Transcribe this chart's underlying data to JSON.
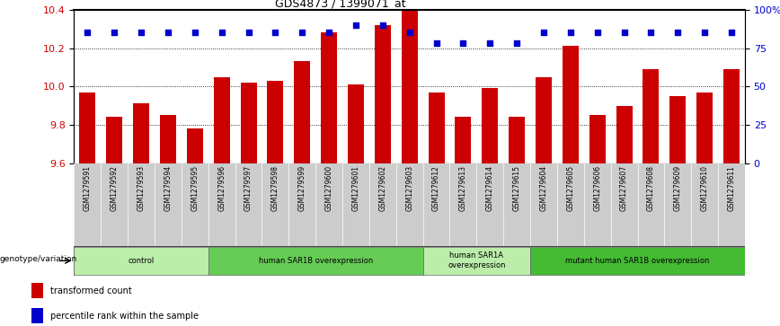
{
  "title": "GDS4873 / 1399071_at",
  "samples": [
    "GSM1279591",
    "GSM1279592",
    "GSM1279593",
    "GSM1279594",
    "GSM1279595",
    "GSM1279596",
    "GSM1279597",
    "GSM1279598",
    "GSM1279599",
    "GSM1279600",
    "GSM1279601",
    "GSM1279602",
    "GSM1279603",
    "GSM1279612",
    "GSM1279613",
    "GSM1279614",
    "GSM1279615",
    "GSM1279604",
    "GSM1279605",
    "GSM1279606",
    "GSM1279607",
    "GSM1279608",
    "GSM1279609",
    "GSM1279610",
    "GSM1279611"
  ],
  "bar_values": [
    9.97,
    9.84,
    9.91,
    9.85,
    9.78,
    10.05,
    10.02,
    10.03,
    10.13,
    10.28,
    10.01,
    10.32,
    10.4,
    9.97,
    9.84,
    9.99,
    9.84,
    10.05,
    10.21,
    9.85,
    9.9,
    10.09,
    9.95,
    9.97,
    10.09
  ],
  "percentile_values": [
    85,
    85,
    85,
    85,
    85,
    85,
    85,
    85,
    85,
    85,
    90,
    90,
    85,
    78,
    78,
    78,
    78,
    85,
    85,
    85,
    85,
    85,
    85,
    85,
    85
  ],
  "ylim_left": [
    9.6,
    10.4
  ],
  "ylim_right": [
    0,
    100
  ],
  "yticks_left": [
    9.6,
    9.8,
    10.0,
    10.2,
    10.4
  ],
  "yticks_right": [
    0,
    25,
    50,
    75,
    100
  ],
  "bar_color": "#cc0000",
  "percentile_color": "#0000cc",
  "bar_width": 0.6,
  "groups": [
    {
      "label": "control",
      "start": 0,
      "end": 4,
      "color": "#bbeeaa"
    },
    {
      "label": "human SAR1B overexpression",
      "start": 5,
      "end": 12,
      "color": "#66cc55"
    },
    {
      "label": "human SAR1A\noverexpression",
      "start": 13,
      "end": 16,
      "color": "#bbeeaa"
    },
    {
      "label": "mutant human SAR1B overexpression",
      "start": 17,
      "end": 24,
      "color": "#44bb33"
    }
  ],
  "xlabel_genotype": "genotype/variation",
  "legend_items": [
    {
      "label": "transformed count",
      "color": "#cc0000"
    },
    {
      "label": "percentile rank within the sample",
      "color": "#0000cc"
    }
  ],
  "background_color": "#ffffff",
  "tick_label_color_left": "#cc0000",
  "tick_label_color_right": "#0000cc",
  "xtick_bg_color": "#cccccc",
  "top_border_color": "#000000"
}
